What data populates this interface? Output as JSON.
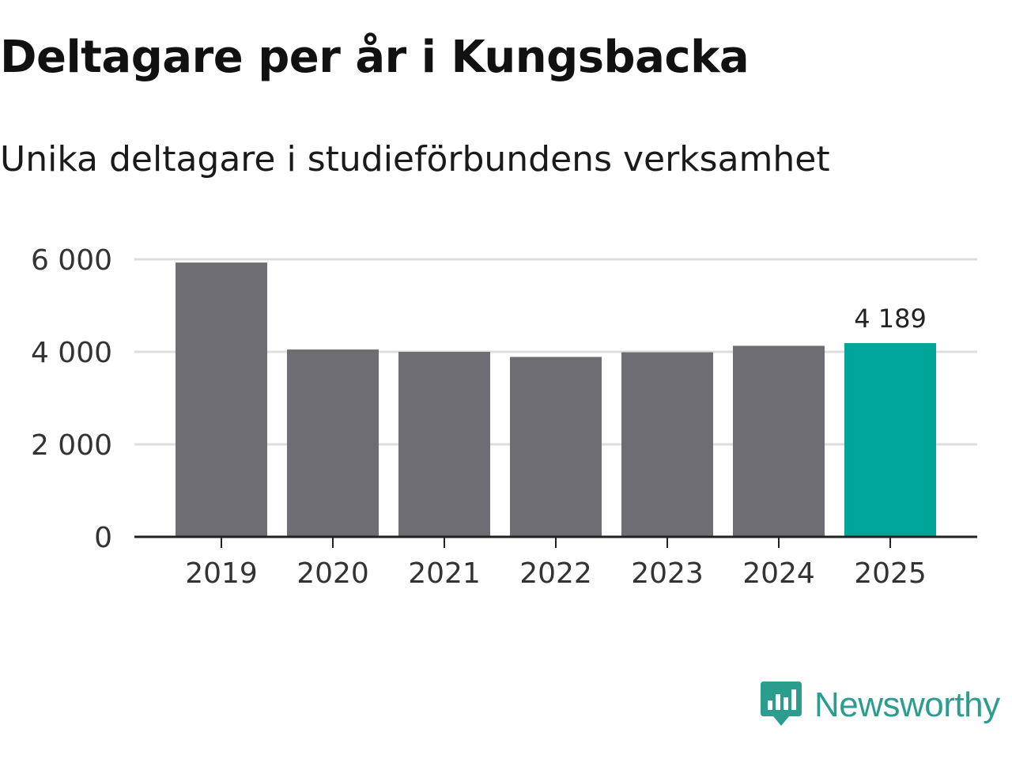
{
  "chart_data": {
    "type": "bar",
    "title": "Deltagare per år i Kungsbacka",
    "subtitle": "Unika deltagare i studieförbundens verksamhet",
    "categories": [
      "2019",
      "2020",
      "2021",
      "2022",
      "2023",
      "2024",
      "2025"
    ],
    "values": [
      5930,
      4050,
      4000,
      3890,
      3990,
      4130,
      4189
    ],
    "highlight_index": 6,
    "data_labels": [
      {
        "index": 6,
        "text": "4 189"
      }
    ],
    "ylim": [
      0,
      6000
    ],
    "yticks": [
      0,
      2000,
      4000,
      6000
    ],
    "ytick_labels": [
      "0",
      "2 000",
      "4 000",
      "6 000"
    ],
    "xlabel": "",
    "ylabel": "",
    "grid": true,
    "colors": {
      "bar": "#6e6d73",
      "highlight": "#00a59a",
      "grid": "#dddddd",
      "axis": "#222222",
      "text": "#333333"
    }
  },
  "brand": {
    "name": "Newsworthy",
    "color": "#2a9d8f",
    "icon": "newsworthy-chart-bubble-icon"
  }
}
